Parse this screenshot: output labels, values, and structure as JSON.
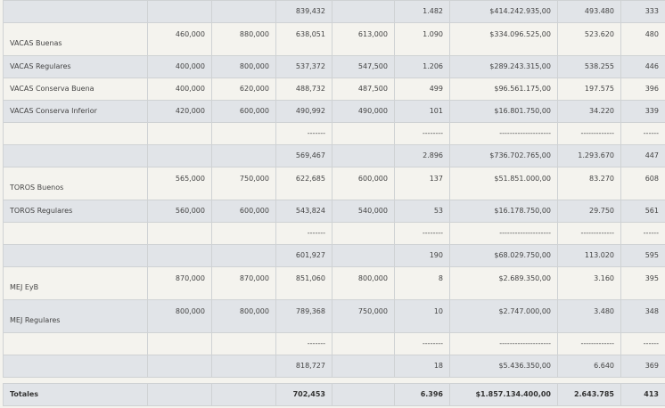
{
  "rows": [
    {
      "style": "g",
      "tall": false,
      "cells": [
        "",
        "",
        "",
        "839,432",
        "",
        "1.482",
        "$414.242.935,00",
        "493.480",
        "333"
      ]
    },
    {
      "style": "c",
      "tall": true,
      "cells": [
        "VACAS Buenas",
        "460,000",
        "880,000",
        "638,051",
        "613,000",
        "1.090",
        "$334.096.525,00",
        "523.620",
        "480"
      ]
    },
    {
      "style": "g",
      "tall": false,
      "cells": [
        "VACAS Regulares",
        "400,000",
        "800,000",
        "537,372",
        "547,500",
        "1.206",
        "$289.243.315,00",
        "538.255",
        "446"
      ]
    },
    {
      "style": "c",
      "tall": false,
      "cells": [
        "VACAS Conserva Buena",
        "400,000",
        "620,000",
        "488,732",
        "487,500",
        "499",
        "$96.561.175,00",
        "197.575",
        "396"
      ]
    },
    {
      "style": "g",
      "tall": false,
      "cells": [
        "VACAS Conserva Inferior",
        "420,000",
        "600,000",
        "490,992",
        "490,000",
        "101",
        "$16.801.750,00",
        "34.220",
        "339"
      ]
    },
    {
      "style": "c",
      "tall": false,
      "cells": [
        "",
        "",
        "",
        "-------",
        "",
        "--------",
        "--------------------",
        "-------------",
        "------"
      ]
    },
    {
      "style": "g",
      "tall": false,
      "cells": [
        "",
        "",
        "",
        "569,467",
        "",
        "2.896",
        "$736.702.765,00",
        "1.293.670",
        "447"
      ]
    },
    {
      "style": "c",
      "tall": true,
      "cells": [
        "TOROS Buenos",
        "565,000",
        "750,000",
        "622,685",
        "600,000",
        "137",
        "$51.851.000,00",
        "83.270",
        "608"
      ]
    },
    {
      "style": "g",
      "tall": false,
      "cells": [
        "TOROS Regulares",
        "560,000",
        "600,000",
        "543,824",
        "540,000",
        "53",
        "$16.178.750,00",
        "29.750",
        "561"
      ]
    },
    {
      "style": "c",
      "tall": false,
      "cells": [
        "",
        "",
        "",
        "-------",
        "",
        "--------",
        "--------------------",
        "-------------",
        "------"
      ]
    },
    {
      "style": "g",
      "tall": false,
      "cells": [
        "",
        "",
        "",
        "601,927",
        "",
        "190",
        "$68.029.750,00",
        "113.020",
        "595"
      ]
    },
    {
      "style": "c",
      "tall": true,
      "cells": [
        "MEJ EyB",
        "870,000",
        "870,000",
        "851,060",
        "800,000",
        "8",
        "$2.689.350,00",
        "3.160",
        "395"
      ]
    },
    {
      "style": "g",
      "tall": true,
      "cells": [
        "MEJ Regulares",
        "800,000",
        "800,000",
        "789,368",
        "750,000",
        "10",
        "$2.747.000,00",
        "3.480",
        "348"
      ]
    },
    {
      "style": "c",
      "tall": false,
      "cells": [
        "",
        "",
        "",
        "-------",
        "",
        "--------",
        "--------------------",
        "-------------",
        "------"
      ]
    },
    {
      "style": "g",
      "tall": false,
      "cells": [
        "",
        "",
        "",
        "818,727",
        "",
        "18",
        "$5.436.350,00",
        "6.640",
        "369"
      ]
    }
  ],
  "totals": {
    "cells": [
      "Totales",
      "",
      "",
      "702,453",
      "",
      "6.396",
      "$1.857.134.400,00",
      "2.643.785",
      "413"
    ]
  },
  "colors": {
    "row_gray": "#e1e4e8",
    "row_cream": "#f4f3ee"
  }
}
